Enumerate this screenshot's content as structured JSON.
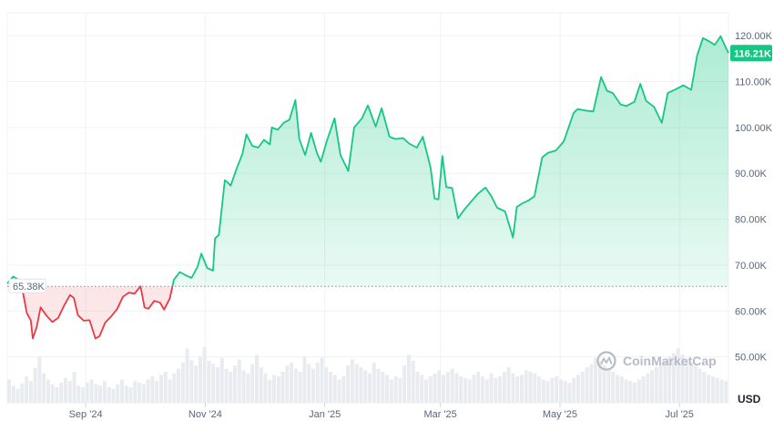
{
  "chart_data": {
    "type": "area",
    "currency_label": "USD",
    "watermark": "CoinMarketCap",
    "baseline": {
      "value": 65380,
      "label": "65.38K"
    },
    "last_price": {
      "value": 116210,
      "label": "116.21K"
    },
    "ylim": [
      40000,
      125000
    ],
    "y_ticks": [
      {
        "value": 50000,
        "label": "50.00K"
      },
      {
        "value": 60000,
        "label": "60.00K"
      },
      {
        "value": 70000,
        "label": "70.00K"
      },
      {
        "value": 80000,
        "label": "80.00K"
      },
      {
        "value": 90000,
        "label": "90.00K"
      },
      {
        "value": 100000,
        "label": "100.00K"
      },
      {
        "value": 110000,
        "label": "110.00K"
      },
      {
        "value": 120000,
        "label": "120.00K"
      }
    ],
    "x_range": [
      "2024-07-23",
      "2025-07-26"
    ],
    "x_ticks": [
      {
        "date": "2024-09-01",
        "label": "Sep '24"
      },
      {
        "date": "2024-11-01",
        "label": "Nov '24"
      },
      {
        "date": "2025-01-01",
        "label": "Jan '25"
      },
      {
        "date": "2025-03-01",
        "label": "Mar '25"
      },
      {
        "date": "2025-05-01",
        "label": "May '25"
      },
      {
        "date": "2025-07-01",
        "label": "Jul '25"
      }
    ],
    "colors": {
      "up": "#16c784",
      "down": "#ea3943",
      "grid": "#eff2f5",
      "axis_text": "#58667e",
      "volume": "#e8ebef"
    },
    "series": [
      {
        "x": [
          "2024-07-23",
          "2024-07-26",
          "2024-07-29",
          "2024-07-31",
          "2024-08-02",
          "2024-08-04",
          "2024-08-05",
          "2024-08-07",
          "2024-08-09",
          "2024-08-12",
          "2024-08-15",
          "2024-08-18",
          "2024-08-21",
          "2024-08-24",
          "2024-08-26",
          "2024-08-28",
          "2024-08-31",
          "2024-09-03",
          "2024-09-06",
          "2024-09-08",
          "2024-09-11",
          "2024-09-14",
          "2024-09-17",
          "2024-09-20",
          "2024-09-23",
          "2024-09-26",
          "2024-09-29",
          "2024-10-01",
          "2024-10-03",
          "2024-10-06",
          "2024-10-09",
          "2024-10-11",
          "2024-10-14",
          "2024-10-16",
          "2024-10-19",
          "2024-10-22",
          "2024-10-25",
          "2024-10-28",
          "2024-10-30",
          "2024-11-02",
          "2024-11-05",
          "2024-11-06",
          "2024-11-08",
          "2024-11-11",
          "2024-11-12",
          "2024-11-14",
          "2024-11-17",
          "2024-11-20",
          "2024-11-22",
          "2024-11-25",
          "2024-11-28",
          "2024-12-01",
          "2024-12-04",
          "2024-12-05",
          "2024-12-08",
          "2024-12-11",
          "2024-12-14",
          "2024-12-17",
          "2024-12-19",
          "2024-12-22",
          "2024-12-25",
          "2024-12-28",
          "2024-12-30",
          "2025-01-02",
          "2025-01-06",
          "2025-01-09",
          "2025-01-13",
          "2025-01-16",
          "2025-01-20",
          "2025-01-23",
          "2025-01-27",
          "2025-01-30",
          "2025-02-03",
          "2025-02-06",
          "2025-02-10",
          "2025-02-13",
          "2025-02-17",
          "2025-02-20",
          "2025-02-24",
          "2025-02-26",
          "2025-02-28",
          "2025-03-02",
          "2025-03-04",
          "2025-03-07",
          "2025-03-10",
          "2025-03-13",
          "2025-03-17",
          "2025-03-20",
          "2025-03-24",
          "2025-03-27",
          "2025-03-30",
          "2025-04-03",
          "2025-04-07",
          "2025-04-09",
          "2025-04-12",
          "2025-04-15",
          "2025-04-18",
          "2025-04-22",
          "2025-04-25",
          "2025-04-29",
          "2025-05-03",
          "2025-05-08",
          "2025-05-10",
          "2025-05-14",
          "2025-05-18",
          "2025-05-22",
          "2025-05-25",
          "2025-05-28",
          "2025-06-01",
          "2025-06-04",
          "2025-06-08",
          "2025-06-11",
          "2025-06-14",
          "2025-06-18",
          "2025-06-22",
          "2025-06-25",
          "2025-06-29",
          "2025-07-03",
          "2025-07-07",
          "2025-07-10",
          "2025-07-13",
          "2025-07-16",
          "2025-07-19",
          "2025-07-22",
          "2025-07-24",
          "2025-07-26"
        ],
        "values": [
          66000,
          67500,
          66800,
          64000,
          59500,
          58000,
          54000,
          56500,
          60800,
          59000,
          57600,
          58500,
          61200,
          63500,
          62800,
          59100,
          57900,
          58000,
          54000,
          54500,
          57500,
          58800,
          60400,
          63100,
          64000,
          63800,
          65400,
          60800,
          60500,
          62200,
          61800,
          60300,
          62800,
          66800,
          68500,
          67800,
          67200,
          69600,
          72500,
          69400,
          68800,
          75800,
          76600,
          88500,
          88200,
          87300,
          91000,
          94300,
          98500,
          96000,
          95600,
          97300,
          96300,
          100000,
          99500,
          101000,
          101700,
          106000,
          97500,
          94000,
          98800,
          94500,
          92500,
          97000,
          102000,
          94000,
          90500,
          100000,
          102000,
          104800,
          100200,
          104200,
          98000,
          97500,
          97700,
          96500,
          95600,
          98000,
          91200,
          84500,
          84300,
          93800,
          87000,
          86800,
          80200,
          82000,
          84000,
          85500,
          86900,
          85000,
          82500,
          81700,
          76000,
          82700,
          83500,
          84100,
          85000,
          93500,
          94500,
          95000,
          97000,
          103200,
          104000,
          103700,
          103500,
          111000,
          108000,
          107500,
          105000,
          104700,
          105600,
          109500,
          105800,
          104500,
          101000,
          107500,
          108300,
          109200,
          108200,
          115700,
          119500,
          118800,
          118000,
          119900,
          118000,
          116210
        ]
      }
    ],
    "volume": [
      30,
      22,
      18,
      25,
      34,
      28,
      45,
      60,
      38,
      30,
      24,
      20,
      26,
      32,
      28,
      40,
      22,
      20,
      26,
      30,
      24,
      22,
      28,
      20,
      18,
      24,
      30,
      22,
      20,
      28,
      26,
      24,
      30,
      34,
      28,
      36,
      40,
      30,
      38,
      44,
      52,
      70,
      55,
      48,
      60,
      72,
      54,
      50,
      46,
      58,
      44,
      40,
      48,
      56,
      42,
      38,
      50,
      62,
      46,
      38,
      30,
      36,
      34,
      40,
      48,
      52,
      44,
      40,
      60,
      50,
      44,
      52,
      58,
      46,
      40,
      36,
      30,
      34,
      48,
      56,
      50,
      46,
      42,
      38,
      52,
      44,
      40,
      36,
      30,
      34,
      32,
      48,
      62,
      54,
      40,
      36,
      30,
      34,
      38,
      42,
      36,
      40,
      44,
      38,
      34,
      32,
      30,
      36,
      40,
      34,
      30,
      38,
      32,
      34,
      40,
      46,
      38,
      34,
      36,
      42,
      40,
      38,
      34,
      30,
      28,
      32,
      34,
      30,
      28,
      26,
      32,
      36,
      40,
      46,
      50,
      58,
      54,
      48,
      44,
      40,
      36,
      34,
      30,
      28,
      26,
      30,
      34,
      38,
      42,
      46,
      50,
      54,
      60,
      64,
      70,
      62,
      56,
      52,
      48,
      44,
      40,
      36,
      34,
      32,
      30,
      28
    ]
  }
}
